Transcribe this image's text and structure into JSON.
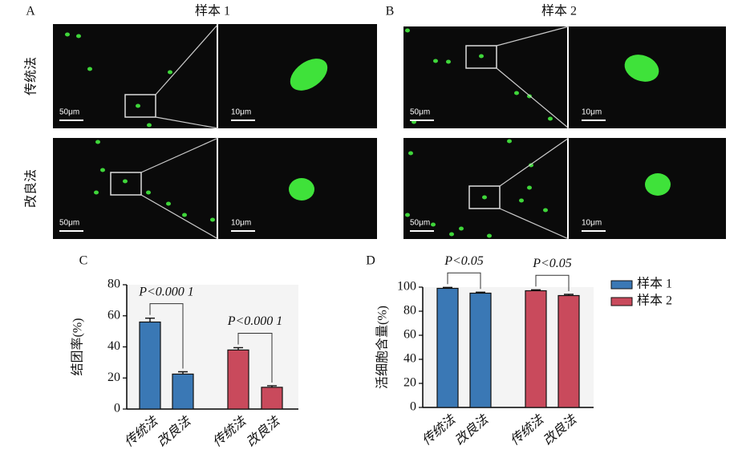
{
  "panels": [
    {
      "label": "A",
      "title": "样本 1",
      "rows": [
        "传统法",
        "改良法"
      ],
      "scale_bars": [
        "50μm",
        "10μm"
      ]
    },
    {
      "label": "B",
      "title": "样本 2",
      "scale_bars": [
        "50μm",
        "10μm"
      ]
    }
  ],
  "chart_data": [
    {
      "type": "bar",
      "label": "C",
      "ylabel": "结团率(%)",
      "categories": [
        "传统法",
        "改良法"
      ],
      "series": [
        {
          "color": "#3a78b5",
          "values": [
            56,
            22.5
          ],
          "errors": [
            2.5,
            1.5
          ]
        },
        {
          "color": "#c94a5c",
          "values": [
            38,
            14
          ],
          "errors": [
            1.5,
            1
          ]
        }
      ],
      "annotations": [
        "P<0.000 1",
        "P<0.000 1"
      ],
      "ylim": [
        0,
        80
      ],
      "yticks": [
        0,
        20,
        40,
        60,
        80
      ]
    },
    {
      "type": "bar",
      "label": "D",
      "ylabel": "活细胞含量(%)",
      "categories": [
        "传统法",
        "改良法"
      ],
      "series": [
        {
          "name": "样本 1",
          "color": "#3a78b5",
          "values": [
            99,
            95
          ],
          "errors": [
            0.8,
            0.8
          ]
        },
        {
          "name": "样本 2",
          "color": "#c94a5c",
          "values": [
            97,
            93
          ],
          "errors": [
            0.8,
            1
          ]
        }
      ],
      "annotations": [
        "P<0.05",
        "P<0.05"
      ],
      "ylim": [
        0,
        100
      ],
      "yticks": [
        0,
        20,
        40,
        60,
        80,
        100
      ],
      "legend": "right"
    }
  ]
}
